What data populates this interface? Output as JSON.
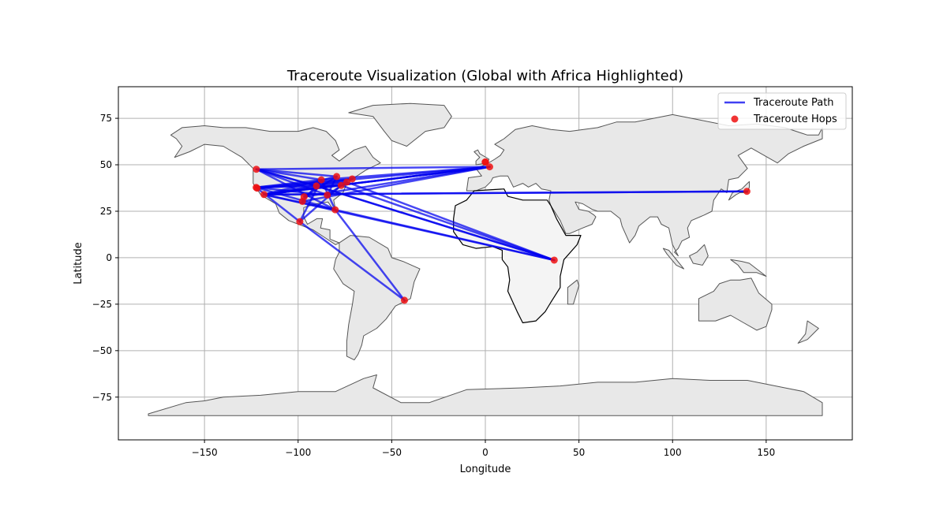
{
  "chart_data": {
    "type": "map-scatter-line",
    "title": "Traceroute Visualization (Global with Africa Highlighted)",
    "xlabel": "Longitude",
    "ylabel": "Latitude",
    "xlim": [
      -196,
      196
    ],
    "ylim": [
      -98,
      92
    ],
    "xticks": [
      -150,
      -100,
      -50,
      0,
      50,
      100,
      150
    ],
    "yticks": [
      -75,
      -50,
      -25,
      0,
      25,
      50,
      75
    ],
    "grid": true,
    "legend_placement": "top-right",
    "legend": [
      {
        "label": "Traceroute Path",
        "kind": "line",
        "color": "#0000ee"
      },
      {
        "label": "Traceroute Hops",
        "kind": "marker",
        "color": "#ee1111"
      }
    ],
    "colors": {
      "land": "#e8e8e8",
      "land_edge": "#555555",
      "africa": "#f4f4f4",
      "africa_edge": "#000000",
      "path": "#0000ee",
      "hop": "#ee1111"
    },
    "hops": [
      [
        -122.3,
        47.6
      ],
      [
        -122.4,
        37.8
      ],
      [
        -121.9,
        37.4
      ],
      [
        -118.2,
        34.0
      ],
      [
        -97.7,
        30.3
      ],
      [
        -96.8,
        32.8
      ],
      [
        -90.2,
        38.6
      ],
      [
        -87.6,
        41.9
      ],
      [
        -84.4,
        33.7
      ],
      [
        -80.2,
        25.8
      ],
      [
        -77.0,
        38.9
      ],
      [
        -79.4,
        43.7
      ],
      [
        -74.0,
        40.7
      ],
      [
        -71.1,
        42.4
      ],
      [
        -99.1,
        19.4
      ],
      [
        -43.2,
        -22.9
      ],
      [
        2.3,
        48.9
      ],
      [
        0.1,
        51.5
      ],
      [
        -0.1,
        51.5
      ],
      [
        139.7,
        35.7
      ],
      [
        36.8,
        -1.3
      ]
    ],
    "path": [
      [
        -122.3,
        47.6
      ],
      [
        2.3,
        48.9
      ],
      [
        -118.2,
        34.0
      ],
      [
        139.7,
        35.7
      ],
      [
        -118.2,
        34.0
      ],
      [
        36.8,
        -1.3
      ],
      [
        -77.0,
        38.9
      ],
      [
        -122.4,
        37.8
      ],
      [
        -87.6,
        41.9
      ],
      [
        -99.1,
        19.4
      ],
      [
        -43.2,
        -22.9
      ],
      [
        -80.2,
        25.8
      ],
      [
        -122.4,
        37.8
      ],
      [
        -71.1,
        42.4
      ],
      [
        -118.2,
        34.0
      ],
      [
        2.3,
        48.9
      ],
      [
        -87.6,
        41.9
      ],
      [
        -80.2,
        25.8
      ],
      [
        -122.3,
        47.6
      ],
      [
        -84.4,
        33.7
      ],
      [
        -74.0,
        40.7
      ],
      [
        36.8,
        -1.3
      ],
      [
        -90.2,
        38.6
      ],
      [
        -122.3,
        47.6
      ],
      [
        -79.4,
        43.7
      ],
      [
        -96.8,
        32.8
      ],
      [
        2.3,
        48.9
      ],
      [
        -118.2,
        34.0
      ],
      [
        -77.0,
        38.9
      ],
      [
        -99.1,
        19.4
      ],
      [
        -122.4,
        37.8
      ],
      [
        -84.4,
        33.7
      ],
      [
        -79.4,
        43.7
      ],
      [
        -118.2,
        34.0
      ],
      [
        -74.0,
        40.7
      ],
      [
        -121.9,
        37.4
      ],
      [
        2.3,
        48.9
      ],
      [
        -97.7,
        30.3
      ],
      [
        -87.6,
        41.9
      ],
      [
        -122.3,
        47.6
      ],
      [
        -90.2,
        38.6
      ],
      [
        36.8,
        -1.3
      ],
      [
        -80.2,
        25.8
      ],
      [
        -118.2,
        34.0
      ]
    ]
  }
}
